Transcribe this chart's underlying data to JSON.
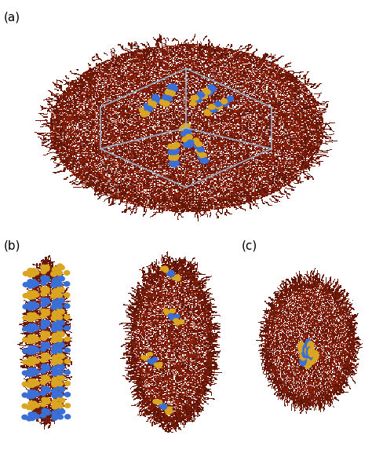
{
  "figure_width": 4.74,
  "figure_height": 5.82,
  "dpi": 100,
  "background_color": "#ffffff",
  "labels": {
    "a": "(a)",
    "b": "(b)",
    "c": "(c)"
  },
  "label_fontsize": 11,
  "label_color": "#000000",
  "polymer_rgb": [
    0.55,
    0.13,
    0.04
  ],
  "polymer_dark_rgb": [
    0.38,
    0.08,
    0.02
  ],
  "nanorod_yellow": "#DAA520",
  "nanorod_blue": "#3A6FD8",
  "box_color": "#9EB8D0",
  "seed": 42
}
